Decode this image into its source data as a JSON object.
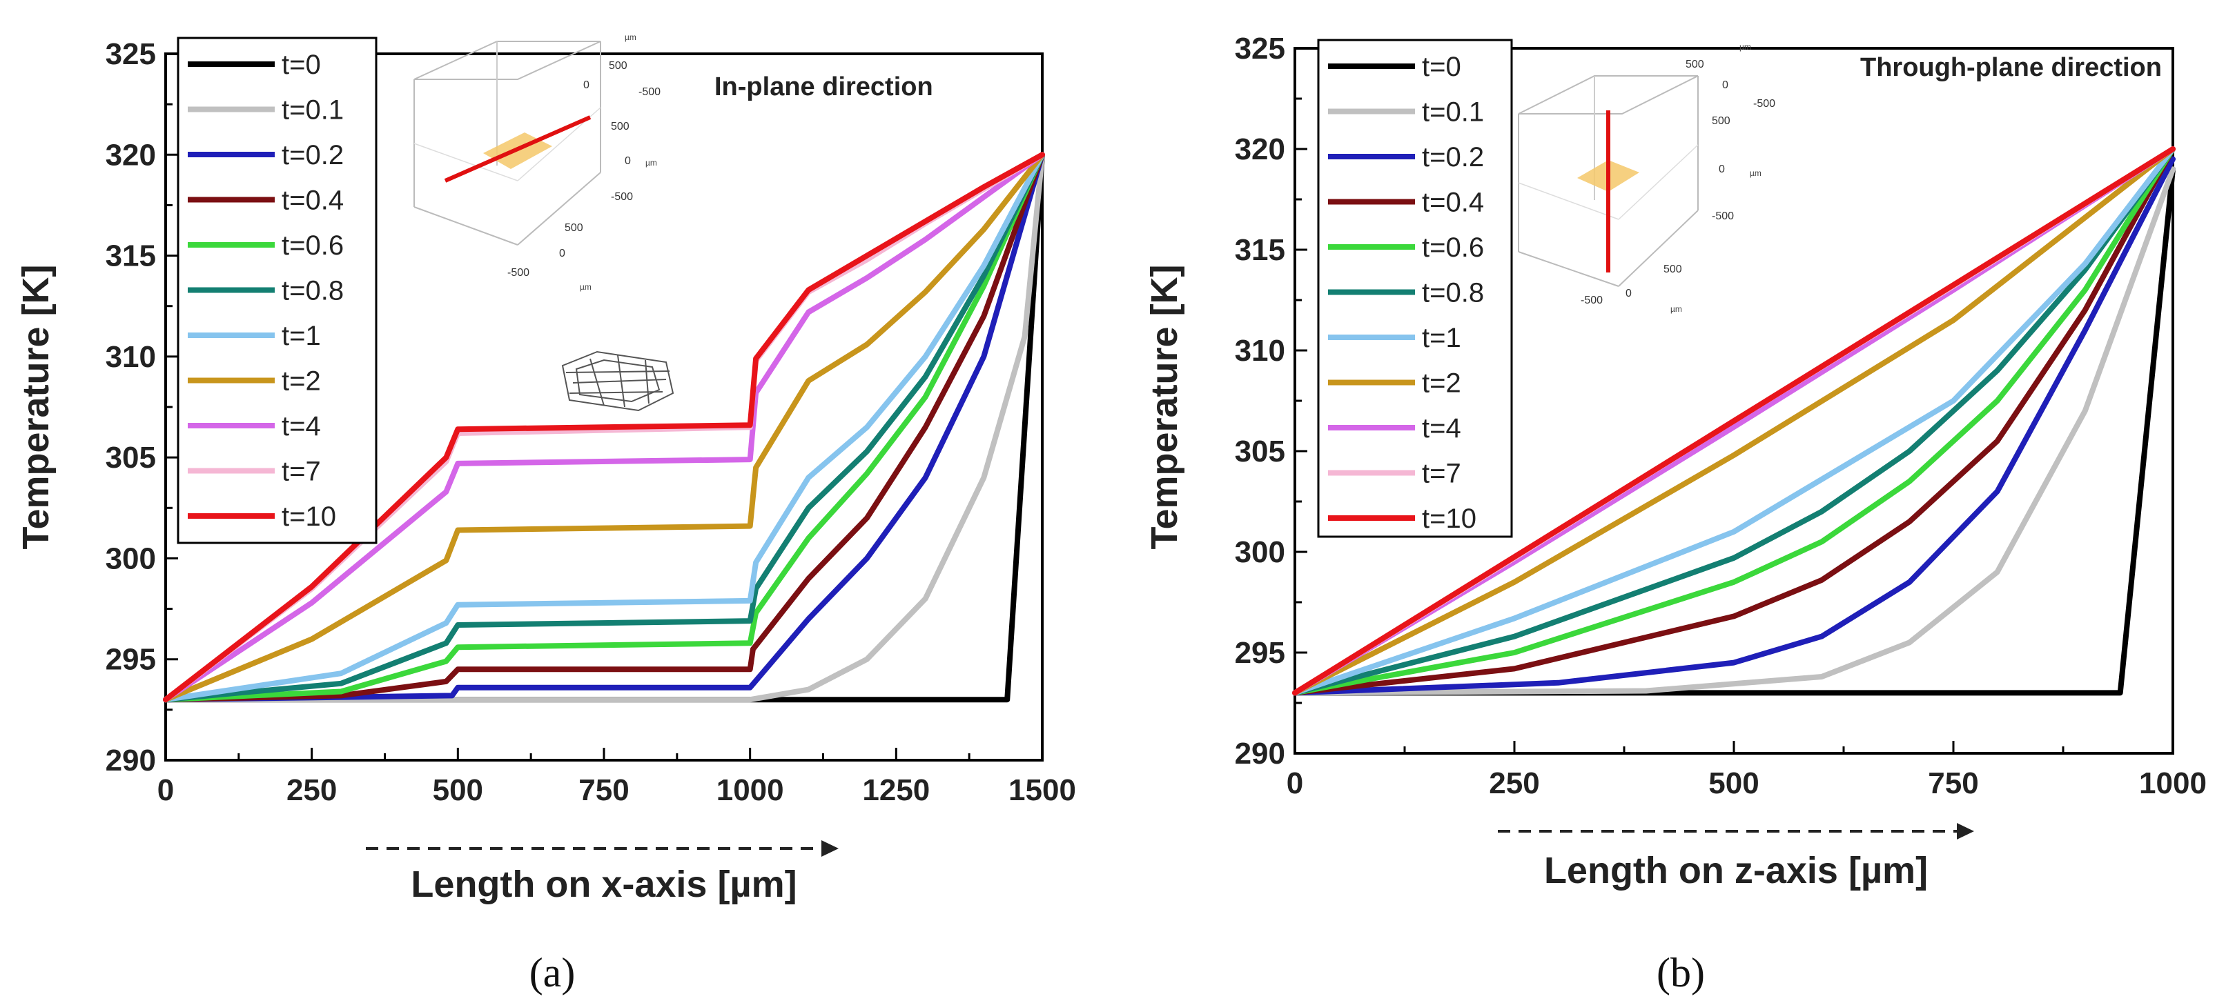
{
  "chart_data": [
    {
      "type": "line",
      "panel_label": "(a)",
      "title": "In-plane direction",
      "xlabel": "Length on x-axis [µm]",
      "ylabel": "Temperature [K]",
      "xlim": [
        0,
        1500
      ],
      "ylim": [
        290,
        325
      ],
      "xticks": [
        "0",
        "250",
        "500",
        "750",
        "1000",
        "1250",
        "1500"
      ],
      "yticks": [
        "290",
        "295",
        "300",
        "305",
        "310",
        "315",
        "320",
        "325"
      ],
      "legend_position": "top-left",
      "series": [
        {
          "name": "t=0",
          "color": "#000000",
          "points": [
            [
              0,
              293
            ],
            [
              1440,
              293
            ],
            [
              1500,
              320
            ]
          ]
        },
        {
          "name": "t=0.1",
          "color": "#c0c0c0",
          "points": [
            [
              0,
              293
            ],
            [
              1000,
              293
            ],
            [
              1100,
              293.5
            ],
            [
              1200,
              295
            ],
            [
              1300,
              298
            ],
            [
              1400,
              304
            ],
            [
              1470,
              311
            ],
            [
              1500,
              320
            ]
          ]
        },
        {
          "name": "t=0.2",
          "color": "#1f1fb8",
          "points": [
            [
              0,
              293
            ],
            [
              490,
              293.2
            ],
            [
              500,
              293.6
            ],
            [
              1000,
              293.6
            ],
            [
              1100,
              297
            ],
            [
              1200,
              300
            ],
            [
              1300,
              304
            ],
            [
              1400,
              310
            ],
            [
              1500,
              320
            ]
          ]
        },
        {
          "name": "t=0.4",
          "color": "#7b0f12",
          "points": [
            [
              0,
              293
            ],
            [
              300,
              293.2
            ],
            [
              480,
              293.9
            ],
            [
              500,
              294.5
            ],
            [
              1000,
              294.5
            ],
            [
              1005,
              295.5
            ],
            [
              1100,
              299
            ],
            [
              1200,
              302
            ],
            [
              1300,
              306.5
            ],
            [
              1400,
              312
            ],
            [
              1500,
              320
            ]
          ]
        },
        {
          "name": "t=0.6",
          "color": "#3bd83b",
          "points": [
            [
              0,
              293
            ],
            [
              300,
              293.4
            ],
            [
              480,
              294.9
            ],
            [
              500,
              295.6
            ],
            [
              1000,
              295.8
            ],
            [
              1010,
              297.3
            ],
            [
              1100,
              301
            ],
            [
              1200,
              304.2
            ],
            [
              1300,
              308
            ],
            [
              1400,
              313.5
            ],
            [
              1500,
              320
            ]
          ]
        },
        {
          "name": "t=0.8",
          "color": "#137f72",
          "points": [
            [
              0,
              293
            ],
            [
              300,
              293.8
            ],
            [
              480,
              295.8
            ],
            [
              500,
              296.7
            ],
            [
              1000,
              296.9
            ],
            [
              1010,
              298.5
            ],
            [
              1100,
              302.5
            ],
            [
              1200,
              305.3
            ],
            [
              1300,
              309
            ],
            [
              1400,
              314
            ],
            [
              1500,
              320
            ]
          ]
        },
        {
          "name": "t=1",
          "color": "#86c4ee",
          "points": [
            [
              0,
              293
            ],
            [
              300,
              294.3
            ],
            [
              480,
              296.8
            ],
            [
              500,
              297.7
            ],
            [
              1000,
              297.9
            ],
            [
              1010,
              299.8
            ],
            [
              1100,
              304
            ],
            [
              1200,
              306.5
            ],
            [
              1300,
              310
            ],
            [
              1400,
              314.5
            ],
            [
              1500,
              320
            ]
          ]
        },
        {
          "name": "t=2",
          "color": "#c8951c",
          "points": [
            [
              0,
              293
            ],
            [
              250,
              296
            ],
            [
              480,
              299.9
            ],
            [
              500,
              301.4
            ],
            [
              1000,
              301.6
            ],
            [
              1010,
              304.5
            ],
            [
              1100,
              308.8
            ],
            [
              1200,
              310.6
            ],
            [
              1300,
              313.2
            ],
            [
              1400,
              316.3
            ],
            [
              1500,
              320
            ]
          ]
        },
        {
          "name": "t=4",
          "color": "#d466e8",
          "points": [
            [
              0,
              293
            ],
            [
              250,
              297.8
            ],
            [
              480,
              303.3
            ],
            [
              500,
              304.7
            ],
            [
              1000,
              304.9
            ],
            [
              1010,
              308.2
            ],
            [
              1100,
              312.2
            ],
            [
              1200,
              313.9
            ],
            [
              1300,
              315.8
            ],
            [
              1400,
              317.9
            ],
            [
              1500,
              320
            ]
          ]
        },
        {
          "name": "t=7",
          "color": "#f5b7d4",
          "points": [
            [
              0,
              293
            ],
            [
              250,
              298.5
            ],
            [
              480,
              304.8
            ],
            [
              500,
              306.2
            ],
            [
              1000,
              306.5
            ],
            [
              1010,
              309.8
            ],
            [
              1100,
              313.2
            ],
            [
              1200,
              314.8
            ],
            [
              1300,
              316.6
            ],
            [
              1400,
              318.3
            ],
            [
              1500,
              320
            ]
          ]
        },
        {
          "name": "t=10",
          "color": "#e8141a",
          "points": [
            [
              0,
              293
            ],
            [
              250,
              298.6
            ],
            [
              480,
              305
            ],
            [
              500,
              306.4
            ],
            [
              1000,
              306.6
            ],
            [
              1010,
              309.9
            ],
            [
              1100,
              313.3
            ],
            [
              1200,
              315
            ],
            [
              1300,
              316.7
            ],
            [
              1400,
              318.4
            ],
            [
              1500,
              320
            ]
          ]
        }
      ],
      "inset": {
        "tick_labels": [
          "500",
          "0",
          "-500"
        ],
        "unit": "µm"
      }
    },
    {
      "type": "line",
      "panel_label": "(b)",
      "title": "Through-plane direction",
      "xlabel": "Length on z-axis [µm]",
      "ylabel": "Temperature [K]",
      "xlim": [
        0,
        1000
      ],
      "ylim": [
        290,
        325
      ],
      "xticks": [
        "0",
        "250",
        "500",
        "750",
        "1000"
      ],
      "yticks": [
        "290",
        "295",
        "300",
        "305",
        "310",
        "315",
        "320",
        "325"
      ],
      "legend_position": "top-left",
      "series": [
        {
          "name": "t=0",
          "color": "#000000",
          "points": [
            [
              0,
              293
            ],
            [
              940,
              293
            ],
            [
              1000,
              319
            ]
          ]
        },
        {
          "name": "t=0.1",
          "color": "#c0c0c0",
          "points": [
            [
              0,
              293
            ],
            [
              400,
              293.1
            ],
            [
              600,
              293.8
            ],
            [
              700,
              295.5
            ],
            [
              800,
              299
            ],
            [
              900,
              307
            ],
            [
              1000,
              319
            ]
          ]
        },
        {
          "name": "t=0.2",
          "color": "#1f1fb8",
          "points": [
            [
              0,
              293
            ],
            [
              300,
              293.5
            ],
            [
              500,
              294.5
            ],
            [
              600,
              295.8
            ],
            [
              700,
              298.5
            ],
            [
              800,
              303
            ],
            [
              900,
              311
            ],
            [
              1000,
              319.5
            ]
          ]
        },
        {
          "name": "t=0.4",
          "color": "#7b0f12",
          "points": [
            [
              0,
              293
            ],
            [
              250,
              294.2
            ],
            [
              500,
              296.8
            ],
            [
              600,
              298.6
            ],
            [
              700,
              301.5
            ],
            [
              800,
              305.5
            ],
            [
              900,
              312
            ],
            [
              1000,
              320
            ]
          ]
        },
        {
          "name": "t=0.6",
          "color": "#3bd83b",
          "points": [
            [
              0,
              293
            ],
            [
              250,
              295
            ],
            [
              500,
              298.5
            ],
            [
              600,
              300.5
            ],
            [
              700,
              303.5
            ],
            [
              800,
              307.5
            ],
            [
              900,
              313
            ],
            [
              1000,
              320
            ]
          ]
        },
        {
          "name": "t=0.8",
          "color": "#137f72",
          "points": [
            [
              0,
              293
            ],
            [
              250,
              295.8
            ],
            [
              500,
              299.7
            ],
            [
              600,
              302
            ],
            [
              700,
              305
            ],
            [
              800,
              309
            ],
            [
              900,
              314
            ],
            [
              1000,
              320
            ]
          ]
        },
        {
          "name": "t=1",
          "color": "#86c4ee",
          "points": [
            [
              0,
              293
            ],
            [
              250,
              296.7
            ],
            [
              500,
              301
            ],
            [
              750,
              307.5
            ],
            [
              900,
              314.3
            ],
            [
              1000,
              320
            ]
          ]
        },
        {
          "name": "t=2",
          "color": "#c8951c",
          "points": [
            [
              0,
              293
            ],
            [
              250,
              298.5
            ],
            [
              500,
              304.8
            ],
            [
              750,
              311.5
            ],
            [
              1000,
              320
            ]
          ]
        },
        {
          "name": "t=4",
          "color": "#d466e8",
          "points": [
            [
              0,
              293
            ],
            [
              250,
              299.5
            ],
            [
              500,
              306.2
            ],
            [
              750,
              313
            ],
            [
              1000,
              320
            ]
          ]
        },
        {
          "name": "t=7",
          "color": "#f5b7d4",
          "points": [
            [
              0,
              293
            ],
            [
              250,
              299.7
            ],
            [
              500,
              306.5
            ],
            [
              750,
              313.2
            ],
            [
              1000,
              320
            ]
          ]
        },
        {
          "name": "t=10",
          "color": "#e8141a",
          "points": [
            [
              0,
              293
            ],
            [
              250,
              299.75
            ],
            [
              500,
              306.5
            ],
            [
              750,
              313.25
            ],
            [
              1000,
              320
            ]
          ]
        }
      ],
      "inset": {
        "tick_labels": [
          "500",
          "0",
          "-500"
        ],
        "unit": "µm"
      }
    }
  ]
}
